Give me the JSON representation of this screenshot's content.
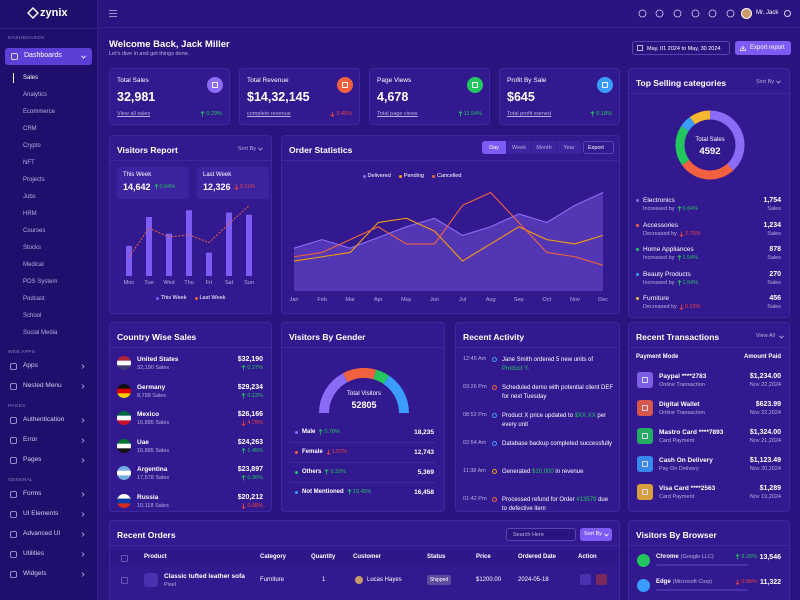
{
  "brand": "zynix",
  "topbar": {
    "user": "Mr. Jack"
  },
  "sidebar": {
    "sections": [
      {
        "title": "DASHBOARDS",
        "items": [
          {
            "label": "Dashboards",
            "active": true,
            "children": [
              "Sales",
              "Analytics",
              "Ecommerce",
              "CRM",
              "Crypto",
              "NFT",
              "Projects",
              "Jobs",
              "HRM",
              "Courses",
              "Stocks",
              "Medical",
              "POS System",
              "Podcast",
              "School",
              "Social Media"
            ]
          }
        ]
      },
      {
        "title": "WEB APPS",
        "items": [
          {
            "label": "Apps"
          },
          {
            "label": "Nested Menu"
          }
        ]
      },
      {
        "title": "PAGES",
        "items": [
          {
            "label": "Authentication"
          },
          {
            "label": "Error"
          },
          {
            "label": "Pages"
          }
        ]
      },
      {
        "title": "GENERAL",
        "items": [
          {
            "label": "Forms"
          },
          {
            "label": "UI Elements"
          },
          {
            "label": "Advanced UI"
          },
          {
            "label": "Utilities"
          },
          {
            "label": "Widgets"
          }
        ]
      }
    ]
  },
  "header": {
    "title": "Welcome Back, Jack Miller",
    "subtitle": "Let's dive in and get things done.",
    "date_range": "May, 01 2024 to May, 30 2024",
    "export_button": "Export report"
  },
  "stats": [
    {
      "label": "Total Sales",
      "value": "32,981",
      "link": "View all sales",
      "change": "0.29%",
      "trend": "up",
      "color": "#8b6cf6"
    },
    {
      "label": "Total Revenue",
      "value": "$14,32,145",
      "link": "complete revenue",
      "change": "3.45%",
      "trend": "down",
      "color": "#f2613f"
    },
    {
      "label": "Page Views",
      "value": "4,678",
      "link": "Total page views",
      "change": "11.54%",
      "trend": "up",
      "color": "#22c55e"
    },
    {
      "label": "Profit By Sale",
      "value": "$645",
      "link": "Total profit earned",
      "change": "0.18%",
      "trend": "up",
      "color": "#3b9cff"
    }
  ],
  "top_selling": {
    "title": "Top Selling categories",
    "sort": "Sort By",
    "center_label": "Total Sales",
    "center_value": 4592,
    "unit": "Sales",
    "items": [
      {
        "name": "Electronics",
        "trend_text": "Increased by",
        "change": "0.64%",
        "trend": "up",
        "value": 1754,
        "value_label": "1,754",
        "color": "#8b6cf6"
      },
      {
        "name": "Accessories",
        "trend_text": "Decreased by",
        "change": "2.75%",
        "trend": "down",
        "value": 1234,
        "value_label": "1,234",
        "color": "#f2613f"
      },
      {
        "name": "Home Appliances",
        "trend_text": "Increased by",
        "change": "1.54%",
        "trend": "up",
        "value": 878,
        "value_label": "878",
        "color": "#22c55e"
      },
      {
        "name": "Beauty Products",
        "trend_text": "Increased by",
        "change": "1.54%",
        "trend": "up",
        "value": 270,
        "value_label": "270",
        "color": "#3b9cff"
      },
      {
        "name": "Furniture",
        "trend_text": "Decreased by",
        "change": "0.12%",
        "trend": "down",
        "value": 456,
        "value_label": "456",
        "color": "#f5b82e"
      }
    ]
  },
  "visitors_report": {
    "title": "Visitors Report",
    "sort": "Sort By",
    "this_week": {
      "label": "This Week",
      "value": "14,642",
      "change": "0.64%",
      "trend": "up"
    },
    "last_week": {
      "label": "Last Week",
      "value": "12,326",
      "change": "3.11%",
      "trend": "down"
    },
    "days": [
      "Mon",
      "Tue",
      "Wed",
      "Thu",
      "Fri",
      "Sat",
      "Sun"
    ],
    "ylim": [
      0,
      70
    ],
    "series": [
      {
        "name": "This Week",
        "color": "#7c5cf5",
        "values": [
          27,
          53,
          38,
          59,
          21,
          57,
          55
        ]
      },
      {
        "name": "Last Week",
        "color": "#f2613f",
        "values": [
          17,
          43,
          35,
          37,
          30,
          47,
          63
        ]
      }
    ]
  },
  "order_statistics": {
    "title": "Order Statistics",
    "tabs": [
      "Day",
      "Week",
      "Month",
      "Year"
    ],
    "active_tab": 0,
    "export": "Export",
    "months": [
      "Jan",
      "Feb",
      "Mar",
      "Apr",
      "May",
      "Jun",
      "Jul",
      "Aug",
      "Sep",
      "Oct",
      "Nov",
      "Dec"
    ],
    "ylim": [
      0,
      100
    ],
    "series": [
      {
        "name": "Delivered",
        "color": "#8b6cf6",
        "values": [
          40,
          48,
          40,
          50,
          60,
          68,
          52,
          60,
          72,
          64,
          80,
          92
        ]
      },
      {
        "name": "Pending",
        "color": "#f59e0b",
        "values": [
          28,
          32,
          36,
          64,
          68,
          56,
          28,
          44,
          60,
          48,
          44,
          52
        ]
      },
      {
        "name": "Cancelled",
        "color": "#f2613f",
        "values": [
          32,
          36,
          48,
          60,
          44,
          44,
          80,
          92,
          64,
          36,
          32,
          24
        ]
      }
    ]
  },
  "country_sales": {
    "title": "Country Wise Sales",
    "rows": [
      {
        "country": "United States",
        "sales": "32,190 Sales",
        "amount": "$32,190",
        "change": "0.27%",
        "trend": "up",
        "flag": [
          "#b22234",
          "#ffffff",
          "#3c3b6e"
        ]
      },
      {
        "country": "Germany",
        "sales": "8,798 Sales",
        "amount": "$29,234",
        "change": "0.12%",
        "trend": "up",
        "flag": [
          "#111111",
          "#dd0000",
          "#ffce00"
        ]
      },
      {
        "country": "Mexico",
        "sales": "16,885 Sales",
        "amount": "$26,166",
        "change": "4.75%",
        "trend": "down",
        "flag": [
          "#006847",
          "#ffffff",
          "#ce1126"
        ]
      },
      {
        "country": "Uae",
        "sales": "16,885 Sales",
        "amount": "$24,263",
        "change": "1.45%",
        "trend": "up",
        "flag": [
          "#00732f",
          "#ffffff",
          "#111111"
        ]
      },
      {
        "country": "Argentina",
        "sales": "17,578 Sales",
        "amount": "$23,897",
        "change": "0.36%",
        "trend": "up",
        "flag": [
          "#74acdf",
          "#ffffff",
          "#74acdf"
        ]
      },
      {
        "country": "Russia",
        "sales": "10,118 Sales",
        "amount": "$20,212",
        "change": "0.68%",
        "trend": "down",
        "flag": [
          "#ffffff",
          "#0039a6",
          "#d52b1e"
        ]
      }
    ]
  },
  "visitors_gender": {
    "title": "Visitors By Gender",
    "center_label": "Total Visitors",
    "center_value": 52805,
    "items": [
      {
        "name": "Male",
        "change": "0.78%",
        "trend": "up",
        "value": 18235,
        "value_label": "18,235",
        "color": "#8b6cf6"
      },
      {
        "name": "Female",
        "change": "1.57%",
        "trend": "down",
        "value": 12743,
        "value_label": "12,743",
        "color": "#f2613f"
      },
      {
        "name": "Others",
        "change": "0.32%",
        "trend": "up",
        "value": 5369,
        "value_label": "5,369",
        "color": "#22c55e"
      },
      {
        "name": "Not Mentioned",
        "change": "19.45%",
        "trend": "up",
        "value": 16458,
        "value_label": "16,458",
        "color": "#3b9cff"
      }
    ]
  },
  "recent_activity": {
    "title": "Recent Activity",
    "items": [
      {
        "time": "12:45 Am",
        "parts": [
          "Jane Smith ordered 5 new units of ",
          "Product Y."
        ],
        "color": "#3b9cff"
      },
      {
        "time": "03:26 Pm",
        "parts": [
          "Scheduled demo with potential client DEF for next Tuesday"
        ],
        "color": "#f2613f"
      },
      {
        "time": "08:52 Pm",
        "parts": [
          "Product X price updated to ",
          "$XX.XX",
          " per every unit"
        ],
        "color": "#3b9cff"
      },
      {
        "time": "02:54 Am",
        "parts": [
          "Database backup completed successfully"
        ],
        "color": "#3b9cff"
      },
      {
        "time": "11:38 Am",
        "parts": [
          "Generated ",
          "$10,000",
          " in revenue"
        ],
        "color": "#f59e0b"
      },
      {
        "time": "01:42 Pm",
        "parts": [
          "Processed refund for Order ",
          "#13579",
          " due to defective item"
        ],
        "color": "#f2613f"
      }
    ]
  },
  "recent_transactions": {
    "title": "Recent Transactions",
    "view_all": "View All",
    "columns": [
      "Payment Mode",
      "Amount Paid"
    ],
    "items": [
      {
        "name": "Paypal ****2783",
        "type": "Online Transaction",
        "amount": "$1,234.00",
        "date": "Nov 22,2024",
        "color": "#8b6cf6"
      },
      {
        "name": "Digital Wallet",
        "type": "Online Transaction",
        "amount": "$623.99",
        "date": "Nov 22,2024",
        "color": "#f2613f"
      },
      {
        "name": "Mastro Card ****7893",
        "type": "Card Payment",
        "amount": "$1,324.00",
        "date": "Nov 21,2024",
        "color": "#22c55e"
      },
      {
        "name": "Cash On Delivery",
        "type": "Pay On Delivery",
        "amount": "$1,123.49",
        "date": "Nov 20,2024",
        "color": "#3b9cff"
      },
      {
        "name": "Visa Card ****2563",
        "type": "Card Payment",
        "amount": "$1,289",
        "date": "Nov 19,2024",
        "color": "#f5b82e"
      }
    ]
  },
  "recent_orders": {
    "title": "Recent Orders",
    "search": "Search Here",
    "sort": "Sort By",
    "columns": [
      "Product",
      "Category",
      "Quantity",
      "Customer",
      "Status",
      "Price",
      "Ordered Date",
      "Action"
    ],
    "rows": [
      {
        "product": "Classic tufted leather sofa",
        "brand": "Pixel",
        "category": "Furniture",
        "quantity": "1",
        "customer": "Lucas Hayes",
        "status": "Shipped",
        "price": "$1200.00",
        "date": "2024-05-18"
      }
    ]
  },
  "visitors_browser": {
    "title": "Visitors By Browser",
    "items": [
      {
        "name": "Chrome",
        "company": "(Google LLC)",
        "change": "3.26%",
        "trend": "up",
        "value": "13,546",
        "color": "#22c55e"
      },
      {
        "name": "Edge",
        "company": "(Microsoft Corp)",
        "change": "0.96%",
        "trend": "down",
        "value": "11,322",
        "color": "#3b9cff"
      }
    ]
  }
}
